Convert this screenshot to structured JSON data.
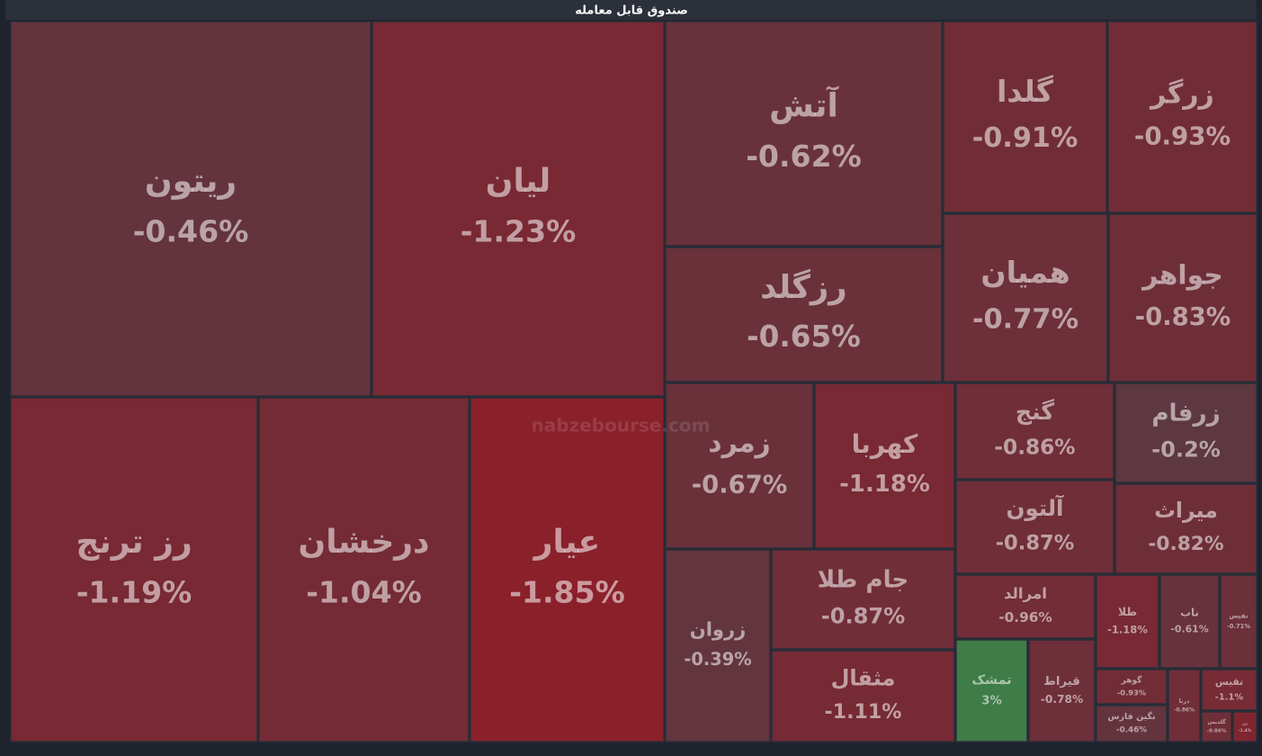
{
  "chart_data": {
    "type": "treemap",
    "title": "صندوق قابل معامله",
    "watermark": "nabzebourse.com",
    "categories": [
      "ریتون",
      "لیان",
      "آتش",
      "گلدا",
      "زرگر",
      "رزگلد",
      "همیان",
      "جواهر",
      "رز ترنج",
      "درخشان",
      "عیار",
      "زمرد",
      "کهربا",
      "گنج",
      "زرفام",
      "آلتون",
      "میراث",
      "زروان",
      "جام طلا",
      "مثقال",
      "امرالد",
      "طلا",
      "ناب",
      "نفیس",
      "تمشک",
      "قیراط",
      "گوهر",
      "نگین فارس",
      "درنا",
      "نقیس",
      "گلدیس",
      "زر"
    ],
    "values": [
      -0.46,
      -1.23,
      -0.62,
      -0.91,
      -0.93,
      -0.65,
      -0.77,
      -0.83,
      -1.19,
      -1.04,
      -1.85,
      -0.67,
      -1.18,
      -0.86,
      -0.2,
      -0.87,
      -0.82,
      -0.39,
      -0.87,
      -1.11,
      -0.96,
      -1.18,
      -0.61,
      -0.71,
      3,
      -0.78,
      -0.93,
      -0.46,
      -0.86,
      -1.1,
      -0.86,
      -1.4
    ],
    "value_labels": [
      "-0.46%",
      "-1.23%",
      "-0.62%",
      "-0.91%",
      "-0.93%",
      "-0.65%",
      "-0.77%",
      "-0.83%",
      "-1.19%",
      "-1.04%",
      "-1.85%",
      "-0.67%",
      "-1.18%",
      "-0.86%",
      "-0.2%",
      "-0.87%",
      "-0.82%",
      "-0.39%",
      "-0.87%",
      "-1.11%",
      "-0.96%",
      "-1.18%",
      "-0.61%",
      "-0.71%",
      "3%",
      "-0.78%",
      "-0.93%",
      "-0.46%",
      "-0.86%",
      "-1.1%",
      "-0.86%",
      "-1.4%"
    ]
  }
}
